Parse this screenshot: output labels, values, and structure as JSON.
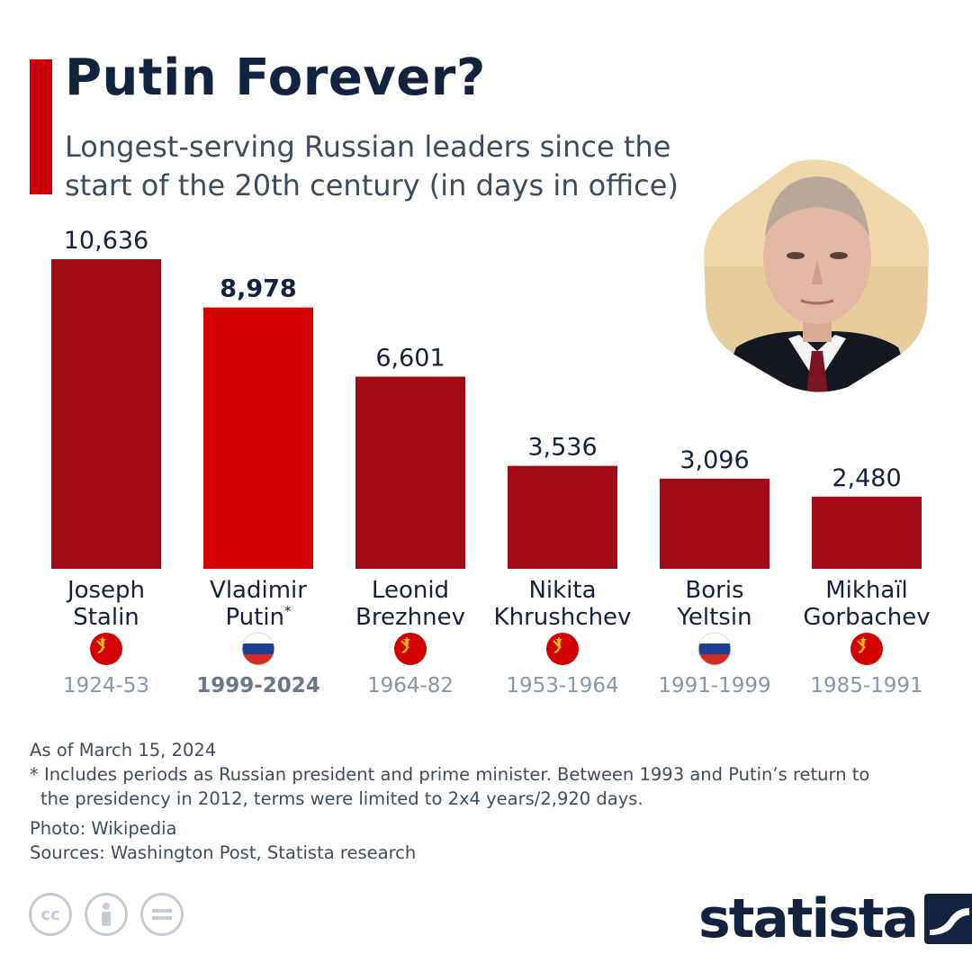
{
  "colors": {
    "accent": "#c8000a",
    "bar_dark": "#a00a14",
    "bar_highlight": "#d40000",
    "title": "#12233f",
    "muted_text": "#3d4d60",
    "period_text": "#8a96a3",
    "soviet_flag": "#d40000",
    "soviet_emblem": "#f5c400",
    "russia_white": "#ffffff",
    "russia_blue": "#1c3f94",
    "russia_red": "#d52b1e"
  },
  "header": {
    "title": "Putin Forever?",
    "subtitle": "Longest-serving Russian leaders since the start of the 20th century (in days in office)"
  },
  "photo": {
    "icon": "portrait-photo"
  },
  "chart_data": {
    "type": "bar",
    "title": "Putin Forever?",
    "subtitle": "Longest-serving Russian leaders since the start of the 20th century (in days in office)",
    "ylim": [
      0,
      10636
    ],
    "grid": false,
    "categories": [
      "Joseph Stalin",
      "Vladimir Putin*",
      "Leonid Brezhnev",
      "Nikita Khrushchev",
      "Boris Yeltsin",
      "Mikhaïl Gorbachev"
    ],
    "values": [
      10636,
      8978,
      6601,
      3536,
      3096,
      2480
    ],
    "bars": [
      {
        "name_line1": "Joseph",
        "name_line2": "Stalin",
        "marker": "",
        "value": 10636,
        "value_label": "10,636",
        "period": "1924-53",
        "flag": "soviet-flag",
        "highlight": false
      },
      {
        "name_line1": "Vladimir",
        "name_line2": "Putin",
        "marker": "*",
        "value": 8978,
        "value_label": "8,978",
        "period": "1999-2024",
        "flag": "russian-flag",
        "highlight": true
      },
      {
        "name_line1": "Leonid",
        "name_line2": "Brezhnev",
        "marker": "",
        "value": 6601,
        "value_label": "6,601",
        "period": "1964-82",
        "flag": "soviet-flag",
        "highlight": false
      },
      {
        "name_line1": "Nikita",
        "name_line2": "Khrushchev",
        "marker": "",
        "value": 3536,
        "value_label": "3,536",
        "period": "1953-1964",
        "flag": "soviet-flag",
        "highlight": false
      },
      {
        "name_line1": "Boris",
        "name_line2": "Yeltsin",
        "marker": "",
        "value": 3096,
        "value_label": "3,096",
        "period": "1991-1999",
        "flag": "russian-flag",
        "highlight": false
      },
      {
        "name_line1": "Mikhaïl",
        "name_line2": "Gorbachev",
        "marker": "",
        "value": 2480,
        "value_label": "2,480",
        "period": "1985-1991",
        "flag": "soviet-flag",
        "highlight": false
      }
    ]
  },
  "footer": {
    "as_of": "As of March 15, 2024",
    "note_line1": "* Includes periods as Russian president and prime minister. Between 1993 and Putin’s return to",
    "note_line2": "the presidency in 2012, terms were limited to 2x4 years/2,920 days.",
    "photo_credit": "Photo: Wikipedia",
    "sources": "Sources: Washington Post, Statista research"
  },
  "license_icons": [
    {
      "icon": "creative-commons-icon",
      "glyph": "cc"
    },
    {
      "icon": "attribution-icon",
      "glyph": ""
    },
    {
      "icon": "no-derivatives-icon",
      "glyph": ""
    }
  ],
  "brand": {
    "name": "statista",
    "icon": "statista-logo-icon"
  }
}
